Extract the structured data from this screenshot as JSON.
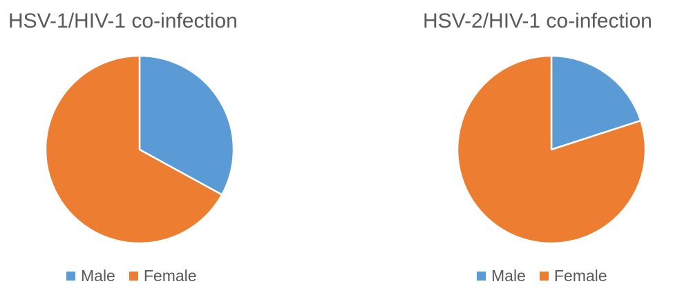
{
  "colors": {
    "male": "#5B9BD5",
    "female": "#ED7D31",
    "slice_border": "#ffffff",
    "text": "#595959"
  },
  "chart_data": [
    {
      "type": "pie",
      "title": "HSV-1/HIV-1 co-infection",
      "categories": [
        "Male",
        "Female"
      ],
      "values": [
        33,
        67
      ],
      "start_angle_deg": 0,
      "direction": "clockwise",
      "legend_position": "bottom",
      "legend": [
        "Male",
        "Female"
      ]
    },
    {
      "type": "pie",
      "title": "HSV-2/HIV-1 co-infection",
      "categories": [
        "Male",
        "Female"
      ],
      "values": [
        20,
        80
      ],
      "start_angle_deg": 0,
      "direction": "clockwise",
      "legend_position": "bottom",
      "legend": [
        "Male",
        "Female"
      ]
    }
  ]
}
